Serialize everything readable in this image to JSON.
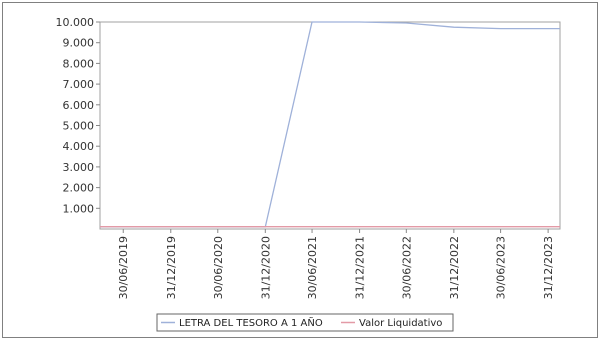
{
  "chart_data": {
    "type": "line",
    "title": "",
    "xlabel": "",
    "ylabel": "",
    "ylim": [
      0,
      10000
    ],
    "y_ticks": [
      "1.000",
      "2.000",
      "3.000",
      "4.000",
      "5.000",
      "6.000",
      "7.000",
      "8.000",
      "9.000",
      "10.000"
    ],
    "y_tick_values": [
      1000,
      2000,
      3000,
      4000,
      5000,
      6000,
      7000,
      8000,
      9000,
      10000
    ],
    "x_ticks": [
      "30/06/2019",
      "31/12/2019",
      "30/06/2020",
      "31/12/2020",
      "30/06/2021",
      "31/12/2021",
      "30/06/2022",
      "31/12/2022",
      "30/06/2023",
      "31/12/2023"
    ],
    "grid": false,
    "legend_position": "bottom-center",
    "series": [
      {
        "name": "LETRA DEL TESORO A 1 AÑO",
        "color": "#9fb1d9",
        "x": [
          "2019-04-01",
          "2019-06-30",
          "2019-12-31",
          "2020-06-30",
          "2020-12-31",
          "2021-06-30",
          "2021-12-31",
          "2022-06-30",
          "2022-12-31",
          "2023-06-30",
          "2023-12-31",
          "2024-02-15"
        ],
        "y": [
          100,
          100,
          100,
          100,
          100,
          10000,
          10000,
          9950,
          9750,
          9680,
          9680,
          9680
        ]
      },
      {
        "name": "Valor Liquidativo",
        "color": "#e39aa6",
        "x": [
          "2019-04-01",
          "2019-06-30",
          "2019-12-31",
          "2020-06-30",
          "2020-12-31",
          "2021-06-30",
          "2021-12-31",
          "2022-06-30",
          "2022-12-31",
          "2023-06-30",
          "2023-12-31",
          "2024-02-15"
        ],
        "y": [
          110,
          110,
          110,
          110,
          110,
          110,
          110,
          110,
          110,
          110,
          110,
          110
        ]
      }
    ]
  }
}
